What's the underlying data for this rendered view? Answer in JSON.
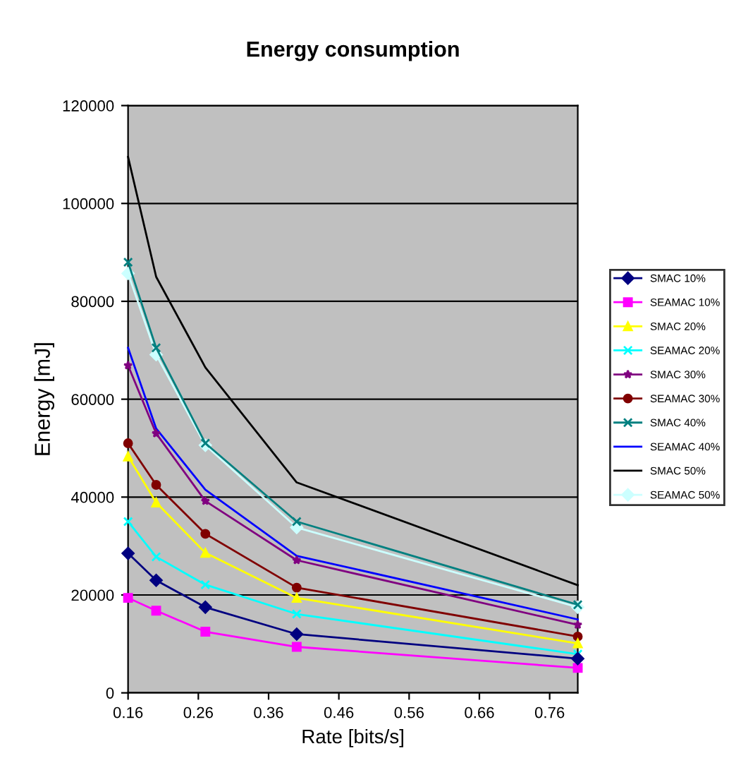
{
  "chart_data": {
    "type": "line",
    "title": "Energy consumption",
    "xlabel": "Rate [bits/s]",
    "ylabel": "Energy [mJ]",
    "x": [
      0.16,
      0.2,
      0.27,
      0.4,
      0.8
    ],
    "series": [
      {
        "name": "SMAC 10%",
        "color": "#000080",
        "marker": "diamond",
        "values": [
          28500,
          23000,
          17500,
          12000,
          7000
        ]
      },
      {
        "name": "SEAMAC 10%",
        "color": "#ff00ff",
        "marker": "square",
        "values": [
          19400,
          16800,
          12500,
          9400,
          5100
        ]
      },
      {
        "name": "SMAC 20%",
        "color": "#ffff00",
        "marker": "triangle",
        "values": [
          48300,
          38900,
          28600,
          19400,
          10100
        ]
      },
      {
        "name": "SEAMAC 20%",
        "color": "#00ffff",
        "marker": "cross",
        "values": [
          35000,
          27800,
          22100,
          16100,
          7900
        ]
      },
      {
        "name": "SMAC 30%",
        "color": "#800080",
        "marker": "star",
        "values": [
          66900,
          53000,
          39200,
          27100,
          13900
        ]
      },
      {
        "name": "SEAMAC 30%",
        "color": "#800000",
        "marker": "circle",
        "values": [
          51000,
          42500,
          32500,
          21500,
          11500
        ]
      },
      {
        "name": "SMAC 40%",
        "color": "#008080",
        "marker": "cross",
        "values": [
          88000,
          70500,
          51000,
          35000,
          18000
        ]
      },
      {
        "name": "SEAMAC 40%",
        "color": "#0000ff",
        "marker": "none",
        "values": [
          70500,
          54000,
          41500,
          28000,
          15000
        ]
      },
      {
        "name": "SMAC 50%",
        "color": "#000000",
        "marker": "none",
        "values": [
          109500,
          85000,
          66500,
          43000,
          22000
        ]
      },
      {
        "name": "SEAMAC 50%",
        "color": "#ccffff",
        "marker": "diamond",
        "values": [
          85700,
          69100,
          50600,
          33800,
          17500
        ]
      }
    ],
    "xlim": [
      0.16,
      0.8
    ],
    "xticks": [
      0.16,
      0.26,
      0.36,
      0.46,
      0.56,
      0.66,
      0.76
    ],
    "ylim": [
      0,
      120000
    ],
    "yticks": [
      0,
      20000,
      40000,
      60000,
      80000,
      100000,
      120000
    ],
    "grid": "y",
    "legend": "right",
    "line_style": "solid"
  }
}
